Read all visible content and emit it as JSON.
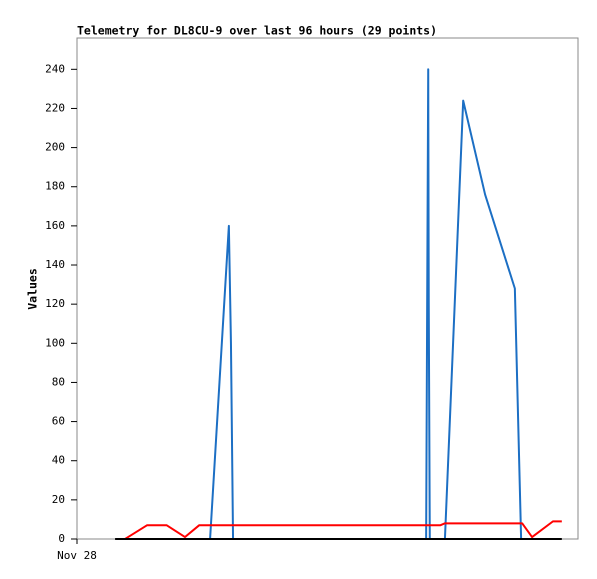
{
  "chart_data": {
    "type": "line",
    "title": "Telemetry for DL8CU-9 over last 96 hours (29 points)",
    "y_label": "Values",
    "xlim": [
      0,
      96
    ],
    "xticks": [
      {
        "value": 0,
        "label": "Nov 28"
      }
    ],
    "ylim": [
      0,
      256
    ],
    "yticks": [
      0,
      20,
      40,
      60,
      80,
      100,
      120,
      140,
      160,
      180,
      200,
      220,
      240
    ],
    "series": [
      {
        "color": "#1c6fc4",
        "x": [
          25.5,
          29.1,
          29.5,
          29.9,
          66.9,
          67.3,
          67.4,
          67.6,
          70.5,
          74.0,
          78.2,
          83.9,
          85.1
        ],
        "values": [
          0,
          160,
          100,
          0,
          0,
          240,
          120,
          0,
          0,
          224,
          176,
          128,
          0
        ]
      },
      {
        "color": "#ff0000",
        "x": [
          9.2,
          13.4,
          17.2,
          20.7,
          23.4,
          69.6,
          70.5,
          85.3,
          87.2,
          91.2,
          92.9
        ],
        "values": [
          0,
          7,
          7,
          1,
          7,
          7,
          8,
          8,
          1,
          9,
          9
        ]
      },
      {
        "color": "#000000",
        "x": [
          7.3,
          92.9
        ],
        "values": [
          0,
          0
        ]
      }
    ]
  }
}
